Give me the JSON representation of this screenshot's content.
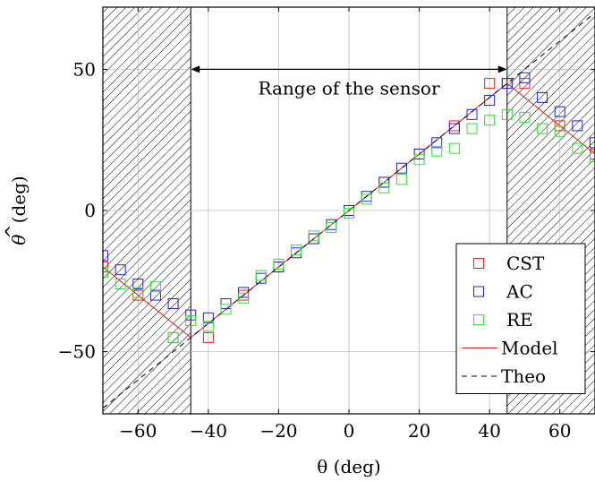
{
  "chart_data": {
    "type": "scatter",
    "xlabel": "θ (deg)",
    "ylabel_base": "θ",
    "ylabel_unit": "(deg)",
    "xlim": [
      -70,
      70
    ],
    "ylim": [
      -72,
      72
    ],
    "xticks": [
      -60,
      -40,
      -20,
      0,
      20,
      40,
      60
    ],
    "yticks": [
      -50,
      0,
      50
    ],
    "xtick_labels": [
      "−60",
      "−40",
      "−20",
      "0",
      "20",
      "40",
      "60"
    ],
    "ytick_labels": [
      "−50",
      "0",
      "50"
    ],
    "grid": true,
    "legend_position": "bottom-right",
    "annotation": {
      "text": "Range of the sensor",
      "x_from": -45,
      "x_to": 45,
      "y": 50
    },
    "hatched_regions": [
      [
        -70,
        -45
      ],
      [
        45,
        70
      ]
    ],
    "series": [
      {
        "name": "CST",
        "kind": "marker",
        "color": "#e8231f",
        "x": [
          -70,
          -60,
          -50,
          -40,
          -30,
          -20,
          -10,
          0,
          10,
          20,
          30,
          40,
          45,
          50,
          60,
          70
        ],
        "y": [
          -20,
          -30,
          -45,
          -45,
          -30,
          -20,
          -10,
          0,
          10,
          20,
          30,
          45,
          45,
          45,
          30,
          20
        ]
      },
      {
        "name": "AC",
        "kind": "marker",
        "color": "#2222cc",
        "x": [
          -70,
          -65,
          -60,
          -55,
          -50,
          -45,
          -40,
          -35,
          -30,
          -25,
          -20,
          -15,
          -10,
          -5,
          0,
          5,
          10,
          15,
          20,
          25,
          30,
          35,
          40,
          45,
          50,
          55,
          60,
          65,
          70
        ],
        "y": [
          -16,
          -21,
          -26,
          -30,
          -33,
          -37,
          -38,
          -33,
          -29,
          -24,
          -20,
          -15,
          -10,
          -5,
          0,
          5,
          10,
          15,
          20,
          24,
          29,
          34,
          39,
          45,
          47,
          40,
          35,
          30,
          24
        ]
      },
      {
        "name": "RE",
        "kind": "marker",
        "color": "#33dd33",
        "x": [
          -70,
          -65,
          -60,
          -55,
          -50,
          -45,
          -40,
          -35,
          -30,
          -25,
          -20,
          -15,
          -10,
          -5,
          0,
          5,
          10,
          15,
          20,
          25,
          30,
          35,
          40,
          45,
          50,
          55,
          60,
          65,
          70
        ],
        "y": [
          -22,
          -26,
          -29,
          -27,
          -45,
          -39,
          -41,
          -35,
          -31,
          -23,
          -19,
          -14,
          -9,
          -6,
          -1,
          4,
          8,
          11,
          18,
          21,
          22,
          29,
          32,
          34,
          33,
          29,
          28,
          22,
          19
        ]
      },
      {
        "name": "Model",
        "kind": "line",
        "color": "#d62020",
        "dash": "",
        "x": [
          -70,
          -45,
          45,
          70
        ],
        "y": [
          -20,
          -45,
          45,
          20
        ]
      },
      {
        "name": "Theo",
        "kind": "line",
        "color": "#000000",
        "dash": "6,5",
        "x": [
          -70,
          70
        ],
        "y": [
          -70,
          70
        ]
      }
    ]
  }
}
